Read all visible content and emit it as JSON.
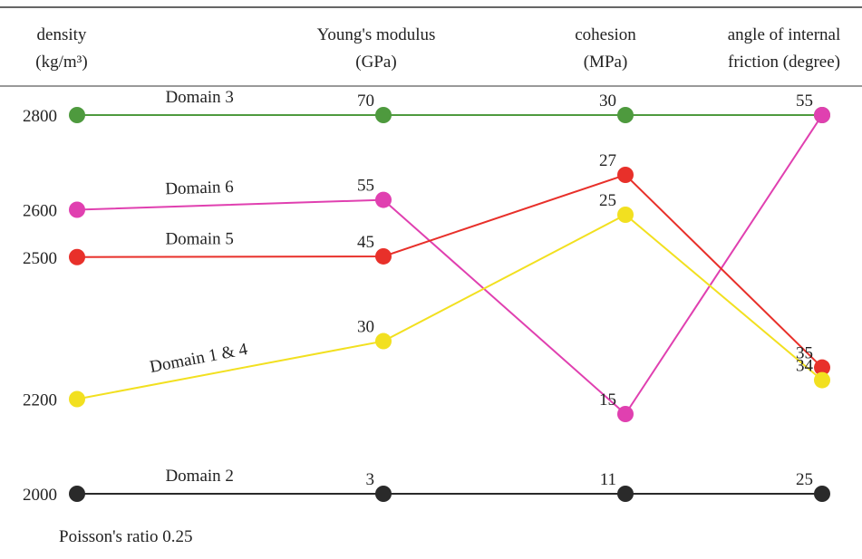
{
  "chart_data": {
    "type": "parallel",
    "axes": [
      {
        "label": [
          "density",
          "(kg/m³)"
        ]
      },
      {
        "label": [
          "Young's modulus",
          "(GPa)"
        ]
      },
      {
        "label": [
          "cohesion",
          "(MPa)"
        ]
      },
      {
        "label": [
          "angle of internal",
          "friction (degree)"
        ]
      }
    ],
    "series": [
      {
        "name": "Domain 3",
        "color": "#4e9a3e",
        "values": [
          2800,
          70,
          30,
          55
        ]
      },
      {
        "name": "Domain 6",
        "color": "#e040b0",
        "values": [
          2600,
          55,
          15,
          55
        ]
      },
      {
        "name": "Domain 5",
        "color": "#e8302a",
        "values": [
          2500,
          45,
          27,
          35
        ]
      },
      {
        "name": "Domain 1 & 4",
        "color": "#f2e020",
        "values": [
          2200,
          30,
          25,
          34
        ]
      },
      {
        "name": "Domain 2",
        "color": "#2a2a2a",
        "values": [
          2000,
          3,
          11,
          25
        ]
      }
    ],
    "note": "Poisson's ratio 0.25"
  }
}
